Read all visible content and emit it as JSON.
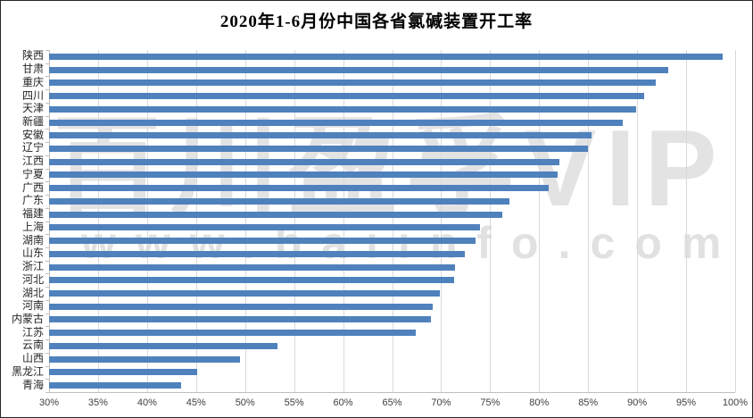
{
  "title": "2020年1-6月份中国各省氯碱装置开工率",
  "watermark": {
    "line1": "百川盈孚VIP",
    "line2": "www.baiinfo.com"
  },
  "colors": {
    "bar": "#4F81BD",
    "gridline": "#D9D9D9",
    "axis_line": "#BFBFBF",
    "watermark": "#C9C9C9",
    "title_text": "#000000",
    "label_text": "#262626"
  },
  "chart_data": {
    "type": "bar",
    "orientation": "horizontal",
    "title": "2020年1-6月份中国各省氯碱装置开工率",
    "categories": [
      "陕西",
      "甘肃",
      "重庆",
      "四川",
      "天津",
      "新疆",
      "安徽",
      "辽宁",
      "江西",
      "宁夏",
      "广西",
      "广东",
      "福建",
      "上海",
      "湖南",
      "山东",
      "浙江",
      "河北",
      "湖北",
      "河南",
      "内蒙古",
      "江苏",
      "云南",
      "山西",
      "黑龙江",
      "青海"
    ],
    "values": [
      98.7,
      93.2,
      91.9,
      90.7,
      89.9,
      88.5,
      85.3,
      85.0,
      82.1,
      81.9,
      81.0,
      77.0,
      76.2,
      74.0,
      73.5,
      72.4,
      71.4,
      71.3,
      69.9,
      69.1,
      69.0,
      67.4,
      53.3,
      49.5,
      45.1,
      43.5
    ],
    "unit": "%",
    "xlabel": "",
    "ylabel": "",
    "xlim": [
      30,
      100
    ],
    "x_tick_step": 5,
    "x_tick_labels": [
      "30%",
      "35%",
      "40%",
      "45%",
      "50%",
      "55%",
      "60%",
      "65%",
      "70%",
      "75%",
      "80%",
      "85%",
      "90%",
      "95%",
      "100%"
    ],
    "grid": true,
    "legend": false,
    "bar_color": "#4F81BD"
  }
}
